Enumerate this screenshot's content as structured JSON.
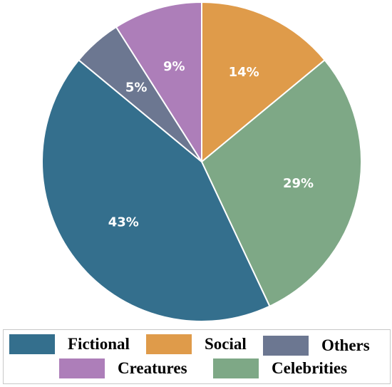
{
  "chart_data": {
    "type": "pie",
    "start": "12 o'clock",
    "direction": "clockwise",
    "slices": [
      {
        "label": "Social",
        "value": 14,
        "pct_label": "14%",
        "color": "#df9b4a"
      },
      {
        "label": "Celebrities",
        "value": 29,
        "pct_label": "29%",
        "color": "#7ea886"
      },
      {
        "label": "Fictional",
        "value": 43,
        "pct_label": "43%",
        "color": "#346f8d"
      },
      {
        "label": "Others",
        "value": 5,
        "pct_label": "5%",
        "color": "#6c7791"
      },
      {
        "label": "Creatures",
        "value": 9,
        "pct_label": "9%",
        "color": "#ad7eb9"
      }
    ],
    "legend": {
      "placement": "bottom",
      "entries": [
        {
          "label": "Fictional",
          "color": "#346f8d"
        },
        {
          "label": "Social",
          "color": "#df9b4a"
        },
        {
          "label": "Others",
          "color": "#6c7791"
        },
        {
          "label": "Creatures",
          "color": "#ad7eb9"
        },
        {
          "label": "Celebrities",
          "color": "#7ea886"
        }
      ]
    }
  }
}
